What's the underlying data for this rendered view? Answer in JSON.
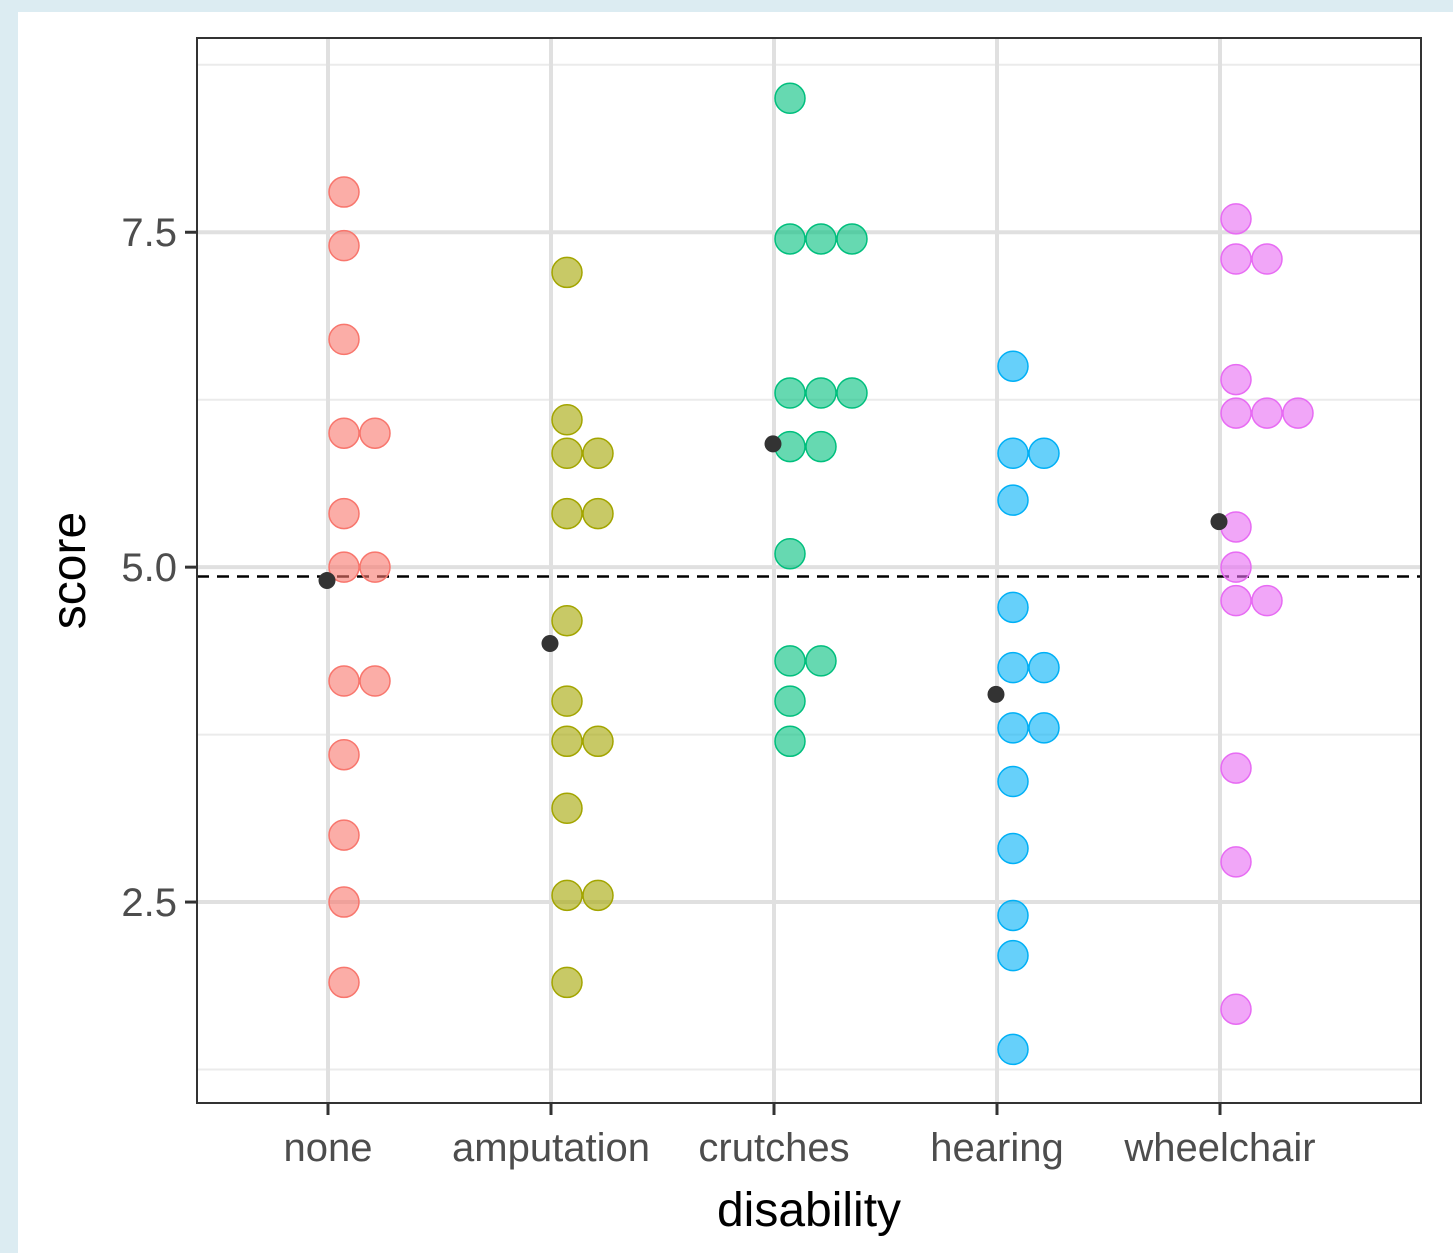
{
  "chart_data": {
    "type": "scatter",
    "xlabel": "disability",
    "ylabel": "score",
    "categories": [
      "none",
      "amputation",
      "crutches",
      "hearing",
      "wheelchair"
    ],
    "ylim": [
      1.0,
      8.95
    ],
    "yticks": [
      2.5,
      5.0,
      7.5
    ],
    "ytick_labels": [
      "2.5",
      "5.0",
      "7.5"
    ],
    "grid": true,
    "reference_line": {
      "y": 4.93,
      "style": "dashed"
    },
    "series": [
      {
        "category": "none",
        "color": "#F8766D",
        "values": [
          7.8,
          7.4,
          6.7,
          6.0,
          6.0,
          5.4,
          5.0,
          5.0,
          4.15,
          4.15,
          3.6,
          3.0,
          2.5,
          1.9
        ],
        "mean": 4.9
      },
      {
        "category": "amputation",
        "color": "#A3A500",
        "values": [
          7.2,
          6.1,
          5.85,
          5.85,
          5.4,
          5.4,
          4.6,
          4.0,
          3.7,
          3.7,
          3.2,
          2.55,
          2.55,
          1.9
        ],
        "mean": 4.43
      },
      {
        "category": "crutches",
        "color": "#00BF7D",
        "values": [
          8.5,
          7.45,
          7.45,
          7.45,
          6.3,
          6.3,
          6.3,
          5.9,
          5.9,
          5.1,
          4.3,
          4.3,
          4.0,
          3.7
        ],
        "mean": 5.92
      },
      {
        "category": "hearing",
        "color": "#00B0F6",
        "values": [
          6.5,
          5.85,
          5.85,
          5.5,
          4.7,
          4.25,
          4.25,
          3.8,
          3.8,
          3.4,
          2.9,
          2.4,
          2.1,
          1.4
        ],
        "mean": 4.05
      },
      {
        "category": "wheelchair",
        "color": "#E76BF3",
        "values": [
          7.6,
          7.3,
          7.3,
          6.4,
          6.15,
          6.15,
          6.15,
          5.3,
          5.0,
          4.75,
          4.75,
          3.5,
          2.8,
          1.7
        ],
        "mean": 5.34
      }
    ]
  }
}
